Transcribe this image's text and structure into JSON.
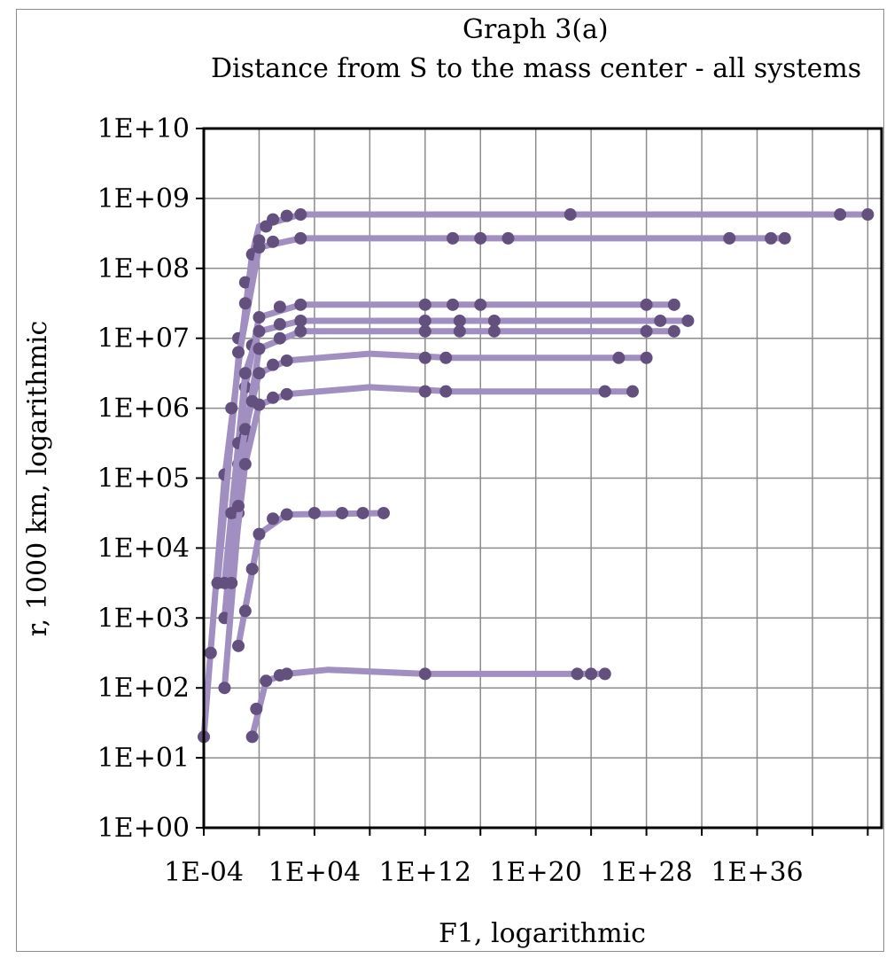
{
  "chart_data": {
    "type": "scatter",
    "title": "Graph 3(a)",
    "subtitle": "Distance from S to the mass center - all systems",
    "xlabel": "F1, logarithmic",
    "ylabel": "r, 1000 km, logarithmic",
    "x_scale": "log",
    "y_scale": "log",
    "xlim_exp": [
      -4,
      45
    ],
    "ylim_exp": [
      0,
      10
    ],
    "x_tick_labels": [
      "1E-04",
      "1E+04",
      "1E+12",
      "1E+20",
      "1E+28",
      "1E+36"
    ],
    "y_tick_labels": [
      "1E+00",
      "1E+01",
      "1E+02",
      "1E+03",
      "1E+04",
      "1E+05",
      "1E+06",
      "1E+07",
      "1E+08",
      "1E+09",
      "1E+10"
    ],
    "grid": true,
    "colors": {
      "line": "#a08fc0",
      "marker": "#64507f",
      "grid": "#8c8c8c",
      "axis": "#000000"
    },
    "series": [
      {
        "curve": [
          [
            -4,
            1.3
          ],
          [
            -2.5,
            5.0
          ],
          [
            -0.5,
            8.2
          ],
          [
            0,
            8.6
          ],
          [
            3,
            8.77
          ],
          [
            44,
            8.77
          ]
        ],
        "points": [
          [
            -4,
            1.3
          ],
          [
            -3.5,
            2.5
          ],
          [
            -3,
            3.5
          ],
          [
            -2.5,
            5.05
          ],
          [
            -1.5,
            7.0
          ],
          [
            -1,
            7.8
          ],
          [
            -0.5,
            8.2
          ],
          [
            0,
            8.4
          ],
          [
            0.5,
            8.6
          ],
          [
            1,
            8.7
          ],
          [
            2,
            8.75
          ],
          [
            3,
            8.77
          ],
          [
            22.5,
            8.77
          ],
          [
            42,
            8.77
          ],
          [
            44,
            8.77
          ]
        ]
      },
      {
        "curve": [
          [
            -3,
            3.5
          ],
          [
            -1.5,
            6.7
          ],
          [
            0,
            8.3
          ],
          [
            3,
            8.43
          ],
          [
            38,
            8.43
          ]
        ],
        "points": [
          [
            -3,
            3.5
          ],
          [
            -2,
            6.0
          ],
          [
            -1.5,
            6.8
          ],
          [
            -1,
            7.5
          ],
          [
            0,
            8.3
          ],
          [
            1,
            8.38
          ],
          [
            3,
            8.43
          ],
          [
            14,
            8.43
          ],
          [
            16,
            8.43
          ],
          [
            18,
            8.43
          ],
          [
            34,
            8.43
          ],
          [
            37,
            8.43
          ],
          [
            38,
            8.43
          ]
        ]
      },
      {
        "curve": [
          [
            -2.5,
            3.0
          ],
          [
            -1,
            6.3
          ],
          [
            0,
            7.3
          ],
          [
            3,
            7.48
          ],
          [
            30,
            7.48
          ]
        ],
        "points": [
          [
            -2.5,
            3.0
          ],
          [
            -1.5,
            5.2
          ],
          [
            -1,
            6.3
          ],
          [
            -0.5,
            6.9
          ],
          [
            0,
            7.3
          ],
          [
            1.5,
            7.45
          ],
          [
            3,
            7.48
          ],
          [
            12,
            7.48
          ],
          [
            14,
            7.48
          ],
          [
            16,
            7.48
          ],
          [
            28,
            7.48
          ],
          [
            30,
            7.48
          ]
        ]
      },
      {
        "curve": [
          [
            -2.5,
            3.5
          ],
          [
            -1,
            6.5
          ],
          [
            0,
            7.1
          ],
          [
            3,
            7.25
          ],
          [
            31,
            7.25
          ]
        ],
        "points": [
          [
            -2.5,
            3.5
          ],
          [
            -1.5,
            5.5
          ],
          [
            -1,
            6.5
          ],
          [
            0,
            7.1
          ],
          [
            1.5,
            7.2
          ],
          [
            3,
            7.25
          ],
          [
            12,
            7.25
          ],
          [
            14.5,
            7.25
          ],
          [
            17,
            7.25
          ],
          [
            29,
            7.25
          ],
          [
            31,
            7.25
          ]
        ]
      },
      {
        "curve": [
          [
            -2.5,
            2.0
          ],
          [
            -1,
            5.6
          ],
          [
            0,
            6.85
          ],
          [
            3,
            7.1
          ],
          [
            30,
            7.1
          ]
        ],
        "points": [
          [
            -2.5,
            2.0
          ],
          [
            -1.5,
            4.5
          ],
          [
            -1,
            5.6
          ],
          [
            0,
            6.85
          ],
          [
            1.5,
            7.0
          ],
          [
            3,
            7.1
          ],
          [
            12,
            7.1
          ],
          [
            14.5,
            7.1
          ],
          [
            17,
            7.1
          ],
          [
            28,
            7.1
          ],
          [
            30,
            7.1
          ]
        ]
      },
      {
        "curve": [
          [
            -2,
            4.5
          ],
          [
            -1,
            5.7
          ],
          [
            0,
            6.5
          ],
          [
            2,
            6.68
          ],
          [
            8,
            6.78
          ],
          [
            14,
            6.72
          ],
          [
            28,
            6.72
          ]
        ],
        "points": [
          [
            -2,
            4.5
          ],
          [
            -1,
            5.7
          ],
          [
            -0.5,
            6.1
          ],
          [
            0,
            6.5
          ],
          [
            1,
            6.62
          ],
          [
            2,
            6.68
          ],
          [
            12,
            6.72
          ],
          [
            13.5,
            6.72
          ],
          [
            26,
            6.72
          ],
          [
            28,
            6.72
          ]
        ]
      },
      {
        "curve": [
          [
            -2,
            3.5
          ],
          [
            -1,
            5.2
          ],
          [
            0,
            6.05
          ],
          [
            2,
            6.2
          ],
          [
            8,
            6.3
          ],
          [
            14,
            6.24
          ],
          [
            27,
            6.24
          ]
        ],
        "points": [
          [
            -2,
            3.5
          ],
          [
            -1.5,
            4.6
          ],
          [
            -1,
            5.2
          ],
          [
            0,
            6.05
          ],
          [
            1,
            6.15
          ],
          [
            2,
            6.2
          ],
          [
            12,
            6.24
          ],
          [
            13.5,
            6.24
          ],
          [
            25,
            6.24
          ],
          [
            27,
            6.24
          ]
        ]
      },
      {
        "curve": [
          [
            -1.5,
            2.6
          ],
          [
            0,
            4.2
          ],
          [
            2,
            4.48
          ],
          [
            9,
            4.5
          ]
        ],
        "points": [
          [
            -1.5,
            2.6
          ],
          [
            -1,
            3.1
          ],
          [
            -0.5,
            3.7
          ],
          [
            0,
            4.2
          ],
          [
            1,
            4.42
          ],
          [
            2,
            4.48
          ],
          [
            4,
            4.5
          ],
          [
            6,
            4.5
          ],
          [
            7.5,
            4.5
          ],
          [
            9,
            4.5
          ]
        ]
      },
      {
        "curve": [
          [
            -0.5,
            1.3
          ],
          [
            0.5,
            2.1
          ],
          [
            2,
            2.2
          ],
          [
            5,
            2.26
          ],
          [
            12,
            2.2
          ],
          [
            25,
            2.2
          ]
        ],
        "points": [
          [
            -0.5,
            1.3
          ],
          [
            -0.2,
            1.7
          ],
          [
            0.5,
            2.1
          ],
          [
            1.5,
            2.18
          ],
          [
            2,
            2.2
          ],
          [
            12,
            2.2
          ],
          [
            23,
            2.2
          ],
          [
            24,
            2.2
          ],
          [
            25,
            2.2
          ]
        ]
      }
    ]
  }
}
